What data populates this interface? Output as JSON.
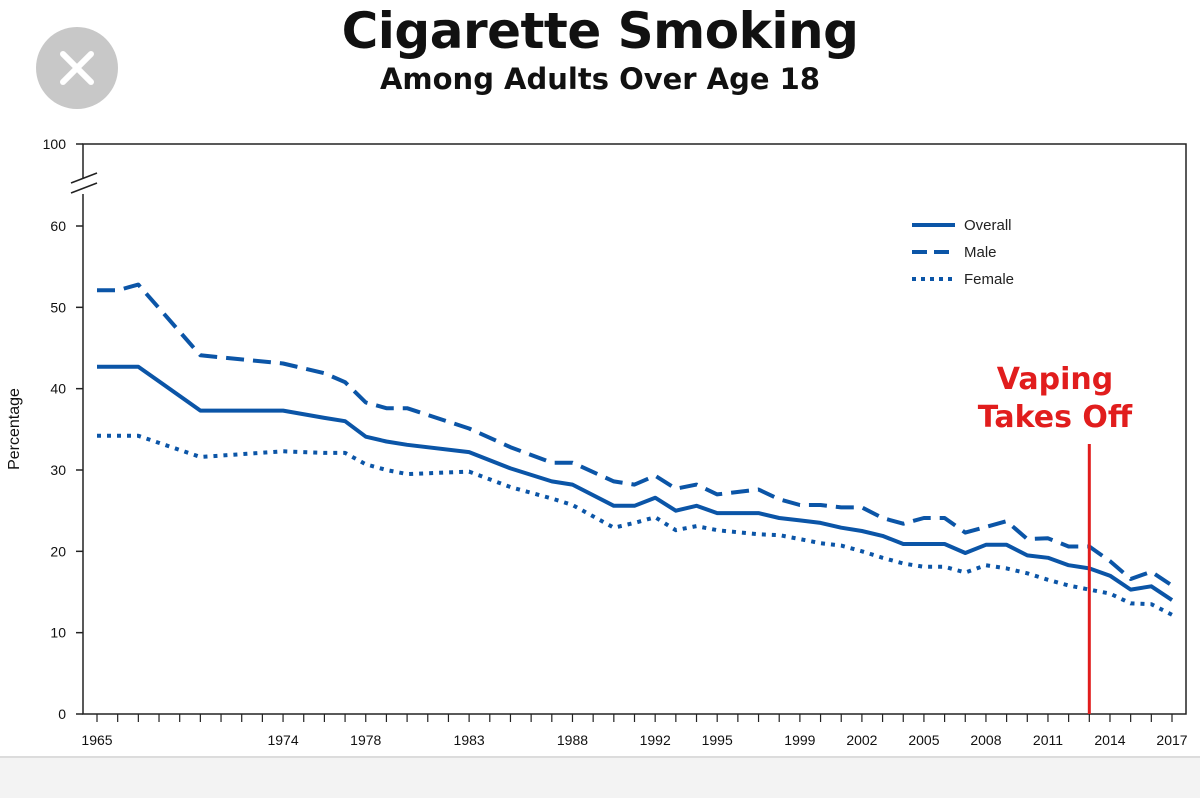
{
  "header": {
    "close_icon": "close-icon"
  },
  "chart_data": {
    "type": "line",
    "title": "Cigarette Smoking",
    "subtitle": "Among Adults Over Age 18",
    "xlabel": "",
    "ylabel": "Percentage",
    "ylim": [
      0,
      100
    ],
    "y_axis_break": [
      60,
      100
    ],
    "y_ticks": [
      0,
      10,
      20,
      30,
      40,
      50,
      60,
      100
    ],
    "x_tick_labels": [
      "1965",
      "1974",
      "1978",
      "1983",
      "1988",
      "1992",
      "1995",
      "1999",
      "2002",
      "2005",
      "2008",
      "2011",
      "2014",
      "2017"
    ],
    "x": [
      1965,
      1966,
      1967,
      1970,
      1974,
      1976,
      1977,
      1978,
      1979,
      1980,
      1983,
      1985,
      1987,
      1988,
      1990,
      1991,
      1992,
      1993,
      1994,
      1995,
      1997,
      1998,
      1999,
      2000,
      2001,
      2002,
      2003,
      2004,
      2005,
      2006,
      2007,
      2008,
      2009,
      2010,
      2011,
      2012,
      2013,
      2014,
      2015,
      2016,
      2017
    ],
    "series": [
      {
        "name": "Overall",
        "style": "solid",
        "values": [
          42.7,
          42.7,
          42.7,
          37.3,
          37.3,
          36.4,
          36.0,
          34.1,
          33.5,
          33.1,
          32.2,
          30.2,
          28.6,
          28.2,
          25.6,
          25.6,
          26.6,
          25.0,
          25.6,
          24.7,
          24.7,
          24.1,
          23.8,
          23.5,
          22.9,
          22.5,
          21.9,
          20.9,
          20.9,
          20.9,
          19.8,
          20.8,
          20.8,
          19.5,
          19.2,
          18.3,
          17.9,
          17.0,
          15.3,
          15.7,
          14.0
        ]
      },
      {
        "name": "Male",
        "style": "dashed",
        "values": [
          52.1,
          52.1,
          52.8,
          44.1,
          43.1,
          41.9,
          40.8,
          38.3,
          37.6,
          37.6,
          35.1,
          32.8,
          30.9,
          30.9,
          28.6,
          28.2,
          29.3,
          27.7,
          28.2,
          27.0,
          27.6,
          26.4,
          25.7,
          25.7,
          25.4,
          25.4,
          24.1,
          23.4,
          24.1,
          24.1,
          22.3,
          23.0,
          23.7,
          21.5,
          21.6,
          20.6,
          20.6,
          18.8,
          16.6,
          17.5,
          15.8
        ]
      },
      {
        "name": "Female",
        "style": "dotted",
        "values": [
          34.2,
          34.2,
          34.2,
          31.6,
          32.3,
          32.1,
          32.1,
          30.7,
          30.0,
          29.5,
          29.8,
          27.9,
          26.5,
          25.7,
          22.9,
          23.5,
          24.2,
          22.6,
          23.1,
          22.6,
          22.1,
          22.0,
          21.5,
          21.0,
          20.7,
          20.0,
          19.2,
          18.5,
          18.1,
          18.1,
          17.4,
          18.3,
          17.9,
          17.3,
          16.5,
          15.8,
          15.3,
          14.8,
          13.6,
          13.5,
          12.2
        ]
      }
    ],
    "legend_position": "top-right",
    "colors": {
      "series": "#0b55a7",
      "annotation": "#e11d1d",
      "axis": "#222222"
    },
    "annotation": {
      "x": 2013,
      "label_line1": "Vaping",
      "label_line2": "Takes Off"
    }
  }
}
